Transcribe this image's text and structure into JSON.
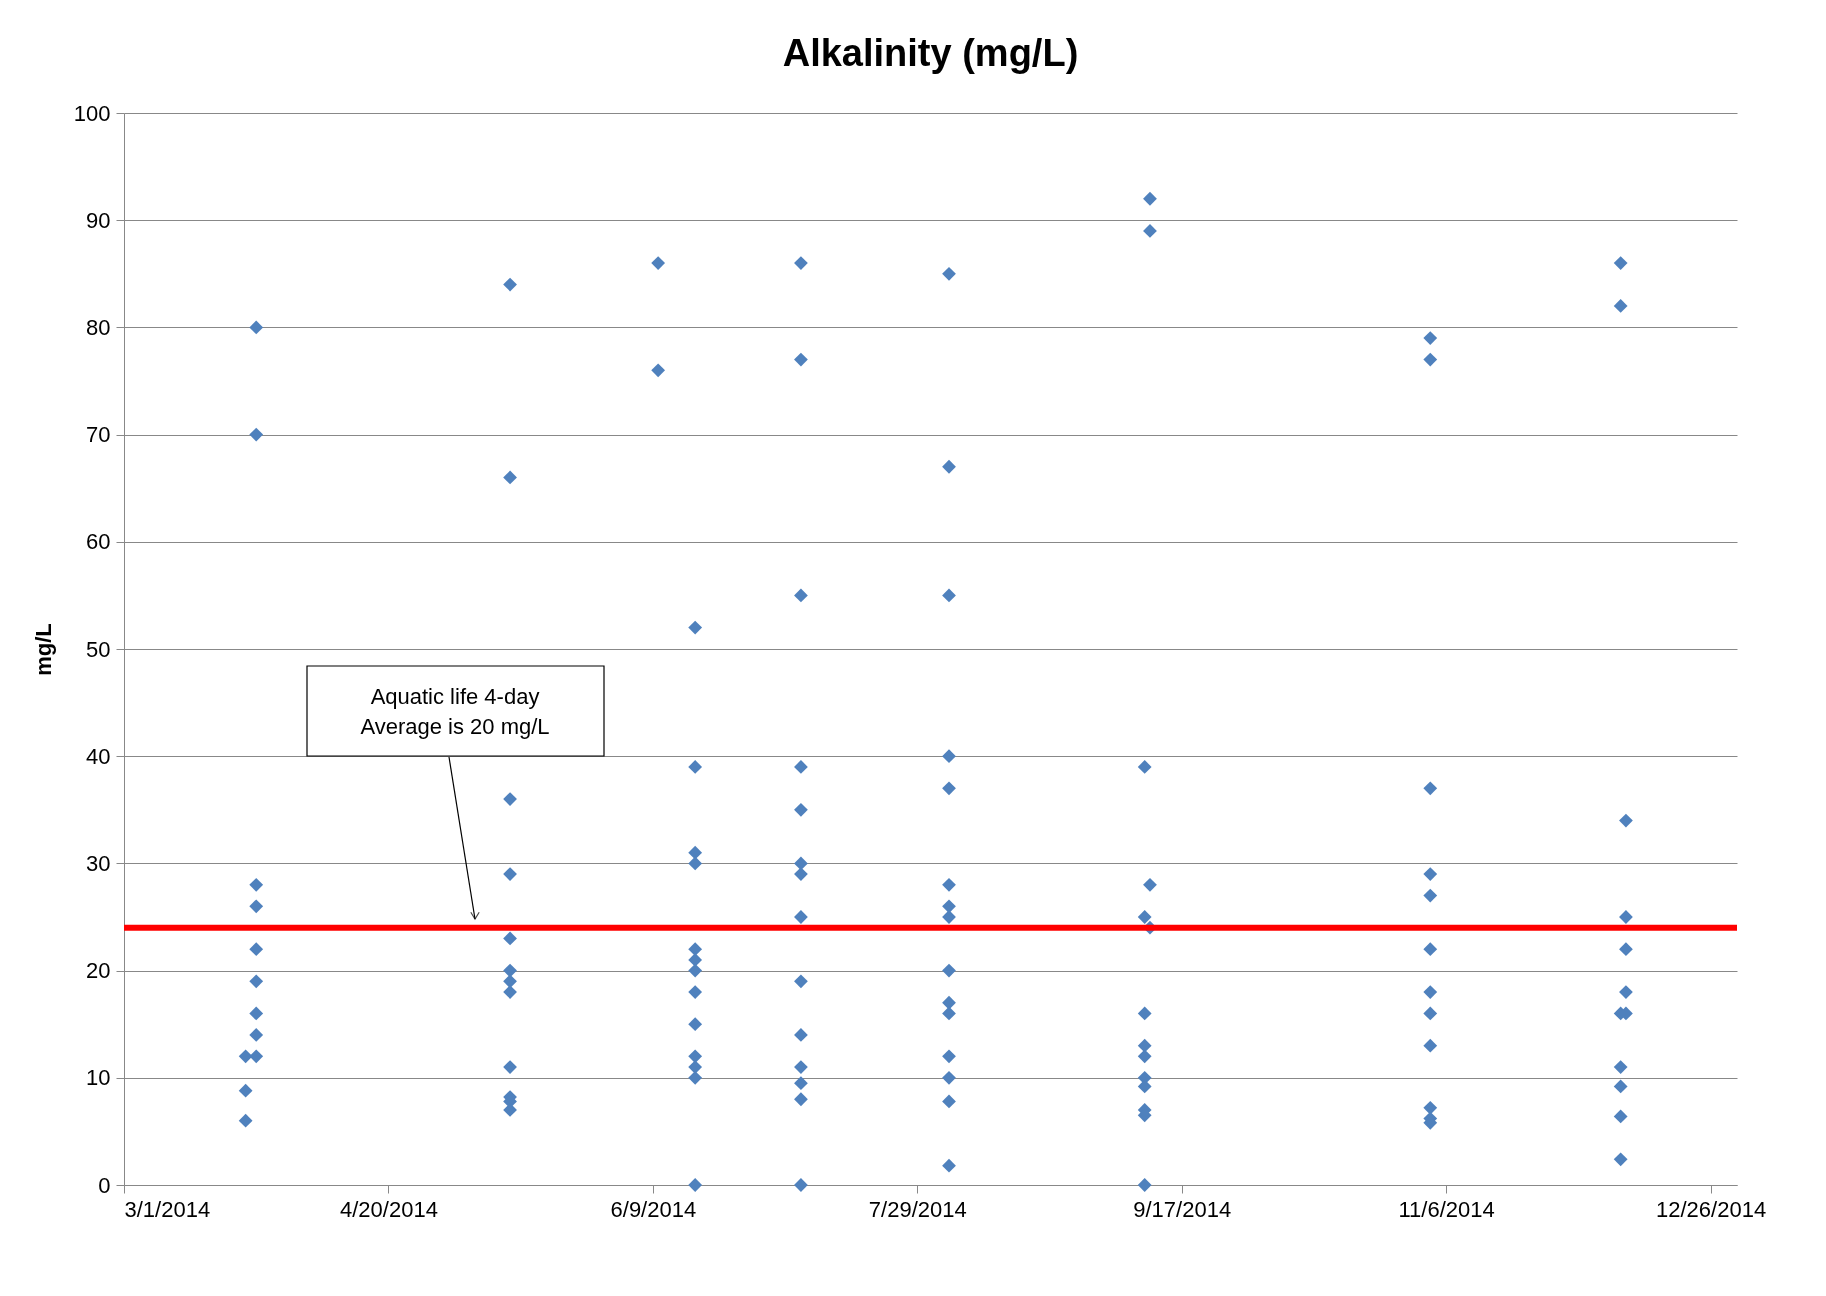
{
  "chart_data": {
    "type": "scatter",
    "title": "Alkalinity (mg/L)",
    "ylabel": "mg/L",
    "xlim": [
      "2014-03-01",
      "2014-12-31"
    ],
    "xticks": [
      {
        "value": "2014-03-01",
        "label": "3/1/2014"
      },
      {
        "value": "2014-04-20",
        "label": "4/20/2014"
      },
      {
        "value": "2014-06-09",
        "label": "6/9/2014"
      },
      {
        "value": "2014-07-29",
        "label": "7/29/2014"
      },
      {
        "value": "2014-09-17",
        "label": "9/17/2014"
      },
      {
        "value": "2014-11-06",
        "label": "11/6/2014"
      },
      {
        "value": "2014-12-26",
        "label": "12/26/2014"
      }
    ],
    "ylim": [
      0,
      100
    ],
    "yticks": [
      0,
      10,
      20,
      30,
      40,
      50,
      60,
      70,
      80,
      90,
      100
    ],
    "grid": "y",
    "marker": "diamond",
    "series": [
      {
        "color": "#4f81bd",
        "x": [
          "2014-03-24",
          "2014-03-24",
          "2014-03-24",
          "2014-03-26",
          "2014-03-26",
          "2014-03-26",
          "2014-03-26",
          "2014-03-26",
          "2014-03-26",
          "2014-03-26",
          "2014-03-26",
          "2014-03-26",
          "2014-05-13",
          "2014-05-13",
          "2014-05-13",
          "2014-05-13",
          "2014-05-13",
          "2014-05-13",
          "2014-05-13",
          "2014-05-13",
          "2014-05-13",
          "2014-05-13",
          "2014-05-13",
          "2014-05-13",
          "2014-06-10",
          "2014-06-10",
          "2014-06-17",
          "2014-06-17",
          "2014-06-17",
          "2014-06-17",
          "2014-06-17",
          "2014-06-17",
          "2014-06-17",
          "2014-06-17",
          "2014-06-17",
          "2014-06-17",
          "2014-06-17",
          "2014-06-17",
          "2014-06-17",
          "2014-07-07",
          "2014-07-07",
          "2014-07-07",
          "2014-07-07",
          "2014-07-07",
          "2014-07-07",
          "2014-07-07",
          "2014-07-07",
          "2014-07-07",
          "2014-07-07",
          "2014-07-07",
          "2014-07-07",
          "2014-07-07",
          "2014-07-07",
          "2014-08-04",
          "2014-08-04",
          "2014-08-04",
          "2014-08-04",
          "2014-08-04",
          "2014-08-04",
          "2014-08-04",
          "2014-08-04",
          "2014-08-04",
          "2014-08-04",
          "2014-08-04",
          "2014-08-04",
          "2014-08-04",
          "2014-08-04",
          "2014-08-04",
          "2014-09-11",
          "2014-09-11",
          "2014-09-11",
          "2014-09-11",
          "2014-09-10",
          "2014-09-10",
          "2014-09-10",
          "2014-09-10",
          "2014-09-10",
          "2014-09-10",
          "2014-09-10",
          "2014-09-10",
          "2014-09-10",
          "2014-09-10",
          "2014-11-03",
          "2014-11-03",
          "2014-11-03",
          "2014-11-03",
          "2014-11-03",
          "2014-11-03",
          "2014-11-03",
          "2014-11-03",
          "2014-11-03",
          "2014-11-03",
          "2014-11-03",
          "2014-11-03",
          "2014-12-09",
          "2014-12-09",
          "2014-12-09",
          "2014-12-09",
          "2014-12-09",
          "2014-12-09",
          "2014-12-09",
          "2014-12-10",
          "2014-12-10",
          "2014-12-10",
          "2014-12-10",
          "2014-12-10"
        ],
        "values": [
          12,
          8.8,
          6,
          80,
          70,
          28,
          26,
          22,
          19,
          16,
          14,
          12,
          84,
          66,
          36,
          29,
          23,
          20,
          19,
          18,
          11,
          8.2,
          7.8,
          7,
          86,
          76,
          52,
          39,
          31,
          30,
          22,
          21,
          20,
          18,
          15,
          12,
          11,
          10,
          0,
          86,
          77,
          55,
          39,
          35,
          30,
          29,
          25,
          19,
          14,
          11,
          9.5,
          8,
          0,
          85,
          67,
          55,
          40,
          37,
          28,
          26,
          25,
          20,
          17,
          16,
          12,
          10,
          7.8,
          1.8,
          92,
          89,
          28,
          24,
          39,
          25,
          16,
          13,
          12,
          10,
          9.2,
          7,
          6.5,
          0,
          79,
          77,
          37,
          29,
          27,
          22,
          18,
          16,
          13,
          7.2,
          6.2,
          5.8,
          86,
          82,
          16,
          11,
          9.2,
          6.4,
          2.4,
          34,
          25,
          22,
          18,
          16
        ]
      }
    ],
    "ref_lines": [
      {
        "axis": "y",
        "value": 24,
        "color": "#ff0000"
      }
    ],
    "annotations": [
      "Aquatic life 4-day\nAverage is 20 mg/L"
    ]
  }
}
